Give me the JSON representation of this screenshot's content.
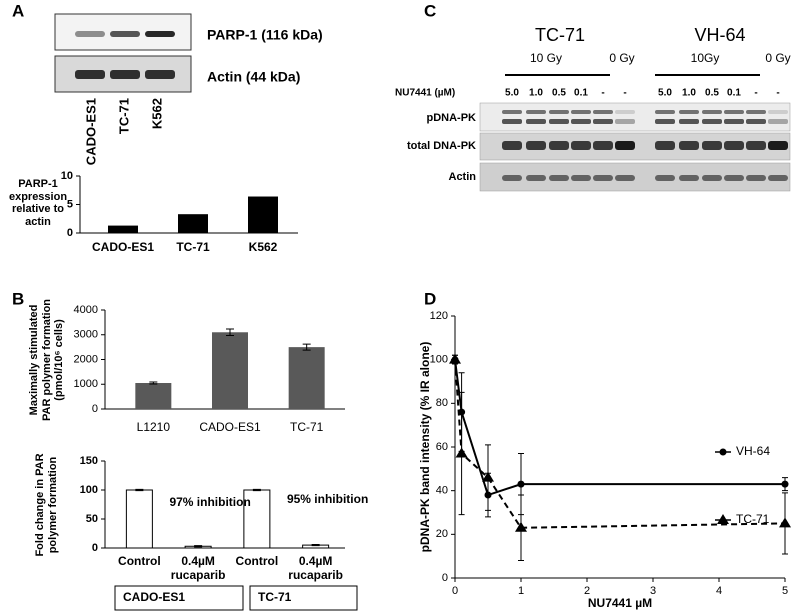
{
  "panel_labels": [
    "A",
    "B",
    "C",
    "D"
  ],
  "blot_a": {
    "rows": [
      "PARP-1 (116 kDa)",
      "Actin (44 kDa)"
    ],
    "lanes": [
      "CADO-ES1",
      "TC-71",
      "K562"
    ]
  },
  "blot_c": {
    "cell_lines": [
      "TC-71",
      "VH-64"
    ],
    "doses": [
      [
        "10 Gy",
        "0 Gy"
      ],
      [
        "10Gy",
        "0 Gy"
      ]
    ],
    "inhibitor_label": "NU7441 (µM)",
    "concentrations": [
      [
        "5.0",
        "1.0",
        "0.5",
        "0.1",
        "-",
        "-"
      ],
      [
        "5.0",
        "1.0",
        "0.5",
        "0.1",
        "-",
        "-"
      ]
    ],
    "rows": [
      "pDNA-PK",
      "total DNA-PK",
      "Actin"
    ]
  },
  "chart_data": [
    {
      "type": "bar",
      "y_label": "PARP-1 expression relative to actin",
      "categories": [
        "CADO-ES1",
        "TC-71",
        "K562"
      ],
      "values": [
        1.3,
        3.3,
        6.4
      ],
      "color": "#000000",
      "ylim": [
        0,
        10
      ],
      "yticks": [
        0,
        5,
        10
      ]
    },
    {
      "type": "bar",
      "y_label": "Maximally stimulated PAR polymer formation (pmol/10⁶ cells)",
      "categories": [
        "L1210",
        "CADO-ES1",
        "TC-71"
      ],
      "values": [
        1050,
        3100,
        2500
      ],
      "errors": [
        40,
        130,
        120
      ],
      "color": "#595959",
      "ylim": [
        0,
        4000
      ],
      "yticks": [
        0,
        1000,
        2000,
        3000,
        4000
      ]
    },
    {
      "type": "bar",
      "y_label": "Fold change in PAR polymer formation",
      "categories": [
        "Control",
        "0.4µM rucaparib",
        "Control",
        "0.4µM rucaparib"
      ],
      "values": [
        100,
        3,
        100,
        5
      ],
      "errors": [
        1,
        1,
        1,
        1
      ],
      "color": "#ffffff",
      "ylim": [
        0,
        150
      ],
      "yticks": [
        0,
        50,
        100,
        150
      ],
      "annotations": [
        "97% inhibition",
        "95% inhibition"
      ],
      "groups": [
        "CADO-ES1",
        "TC-71"
      ]
    },
    {
      "type": "line",
      "y_label": "pDNA-PK band intensity (% IR alone)",
      "x_label": "NU7441 µM",
      "x": [
        0,
        0.1,
        0.5,
        1,
        5
      ],
      "series": [
        {
          "name": "VH-64",
          "color": "#000000",
          "marker": "circle",
          "dash": false,
          "values": [
            100,
            76,
            38,
            43,
            43
          ],
          "errors": [
            2,
            18,
            10,
            14,
            3
          ]
        },
        {
          "name": "TC-71",
          "color": "#000000",
          "marker": "triangle",
          "dash": true,
          "values": [
            100,
            57,
            46,
            23,
            25
          ],
          "errors": [
            2,
            28,
            15,
            15,
            14
          ]
        }
      ],
      "xlim": [
        0,
        5
      ],
      "xticks": [
        0,
        1,
        2,
        3,
        4,
        5
      ],
      "ylim": [
        0,
        120
      ],
      "yticks": [
        0,
        20,
        40,
        60,
        80,
        100,
        120
      ],
      "legend": "right"
    }
  ]
}
